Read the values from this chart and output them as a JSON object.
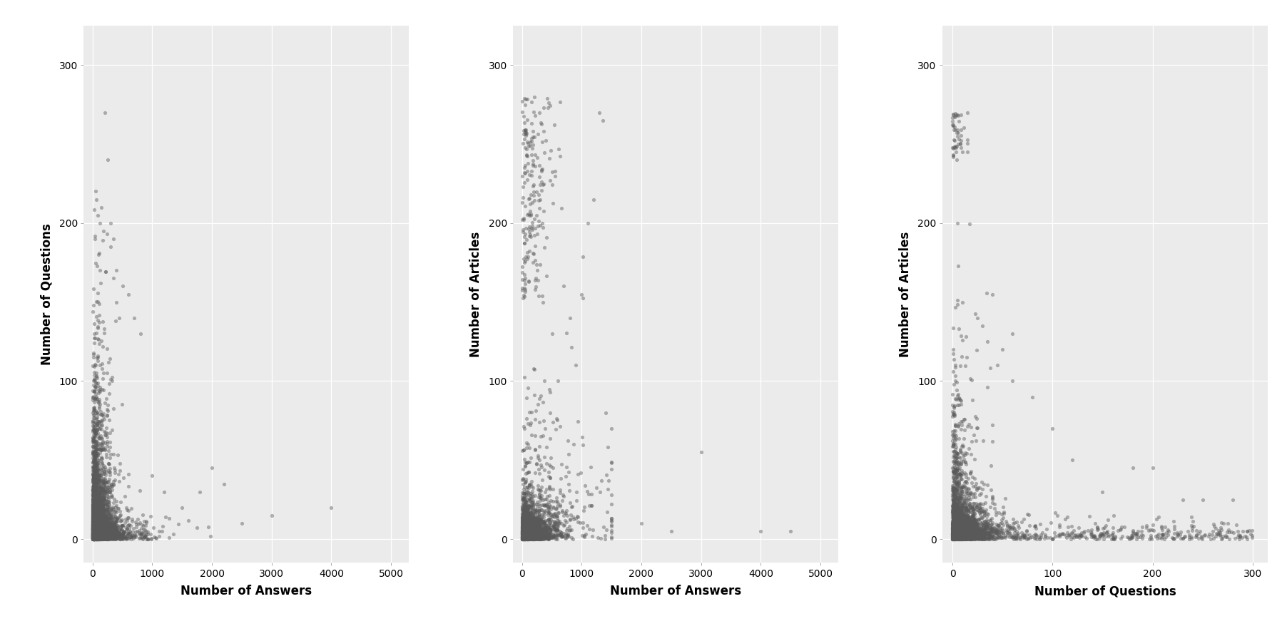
{
  "plots": [
    {
      "xlabel": "Number of Answers",
      "ylabel": "Number of Questions",
      "xlim": [
        -150,
        5300
      ],
      "ylim": [
        -15,
        325
      ],
      "xticks": [
        0,
        1000,
        2000,
        3000,
        4000,
        5000
      ],
      "yticks": [
        0,
        100,
        200,
        300
      ],
      "xticklabels": [
        "0",
        "1000",
        "2000",
        "3000",
        "4000",
        "5000"
      ],
      "yticklabels": [
        "0",
        "100",
        "200",
        "300"
      ]
    },
    {
      "xlabel": "Number of Answers",
      "ylabel": "Number of Articles",
      "xlim": [
        -150,
        5300
      ],
      "ylim": [
        -15,
        325
      ],
      "xticks": [
        0,
        1000,
        2000,
        3000,
        4000,
        5000
      ],
      "yticks": [
        0,
        100,
        200,
        300
      ],
      "xticklabels": [
        "0",
        "1000",
        "2000",
        "3000",
        "4000",
        "5000"
      ],
      "yticklabels": [
        "0",
        "100",
        "200",
        "300"
      ]
    },
    {
      "xlabel": "Number of Questions",
      "ylabel": "Number of Articles",
      "xlim": [
        -10,
        315
      ],
      "ylim": [
        -15,
        325
      ],
      "xticks": [
        0,
        100,
        200,
        300
      ],
      "yticks": [
        0,
        100,
        200,
        300
      ],
      "xticklabels": [
        "0",
        "100",
        "200",
        "300"
      ],
      "yticklabels": [
        "0",
        "100",
        "200",
        "300"
      ]
    }
  ],
  "background_color": "#EBEBEB",
  "point_color": "#595959",
  "point_alpha": 0.45,
  "point_size": 14,
  "grid_color": "#FFFFFF",
  "grid_linewidth": 0.9,
  "xlabel_fontsize": 12,
  "ylabel_fontsize": 12,
  "tick_fontsize": 10,
  "seed": 42
}
